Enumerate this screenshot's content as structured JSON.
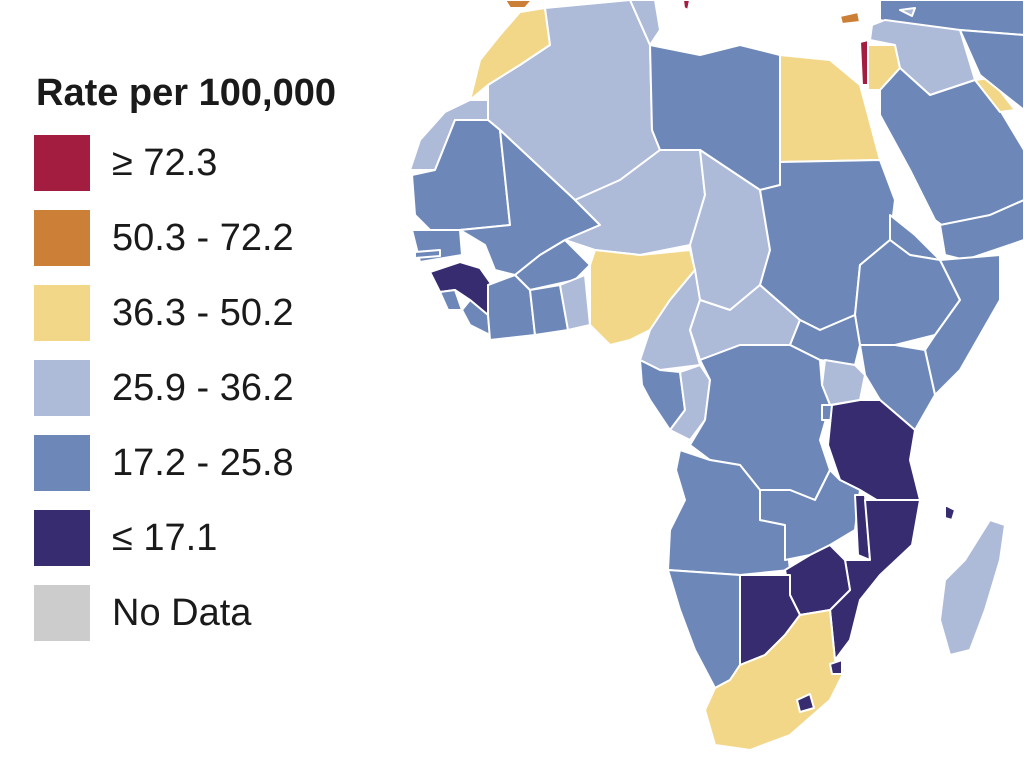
{
  "legend": {
    "title": "Rate per 100,000",
    "items": [
      {
        "label": "≥ 72.3",
        "color": "#a31d40"
      },
      {
        "label": "50.3 - 72.2",
        "color": "#cc7f37"
      },
      {
        "label": "36.3 - 50.2",
        "color": "#f3d789"
      },
      {
        "label": "25.9 - 36.2",
        "color": "#adbad8"
      },
      {
        "label": "17.2 - 25.8",
        "color": "#6d88b8"
      },
      {
        "label": "≤ 17.1",
        "color": "#362c6f"
      },
      {
        "label": "No Data",
        "color": "#cccccc"
      }
    ]
  },
  "map": {
    "background": "#ffffff",
    "border_color": "#ffffff"
  }
}
